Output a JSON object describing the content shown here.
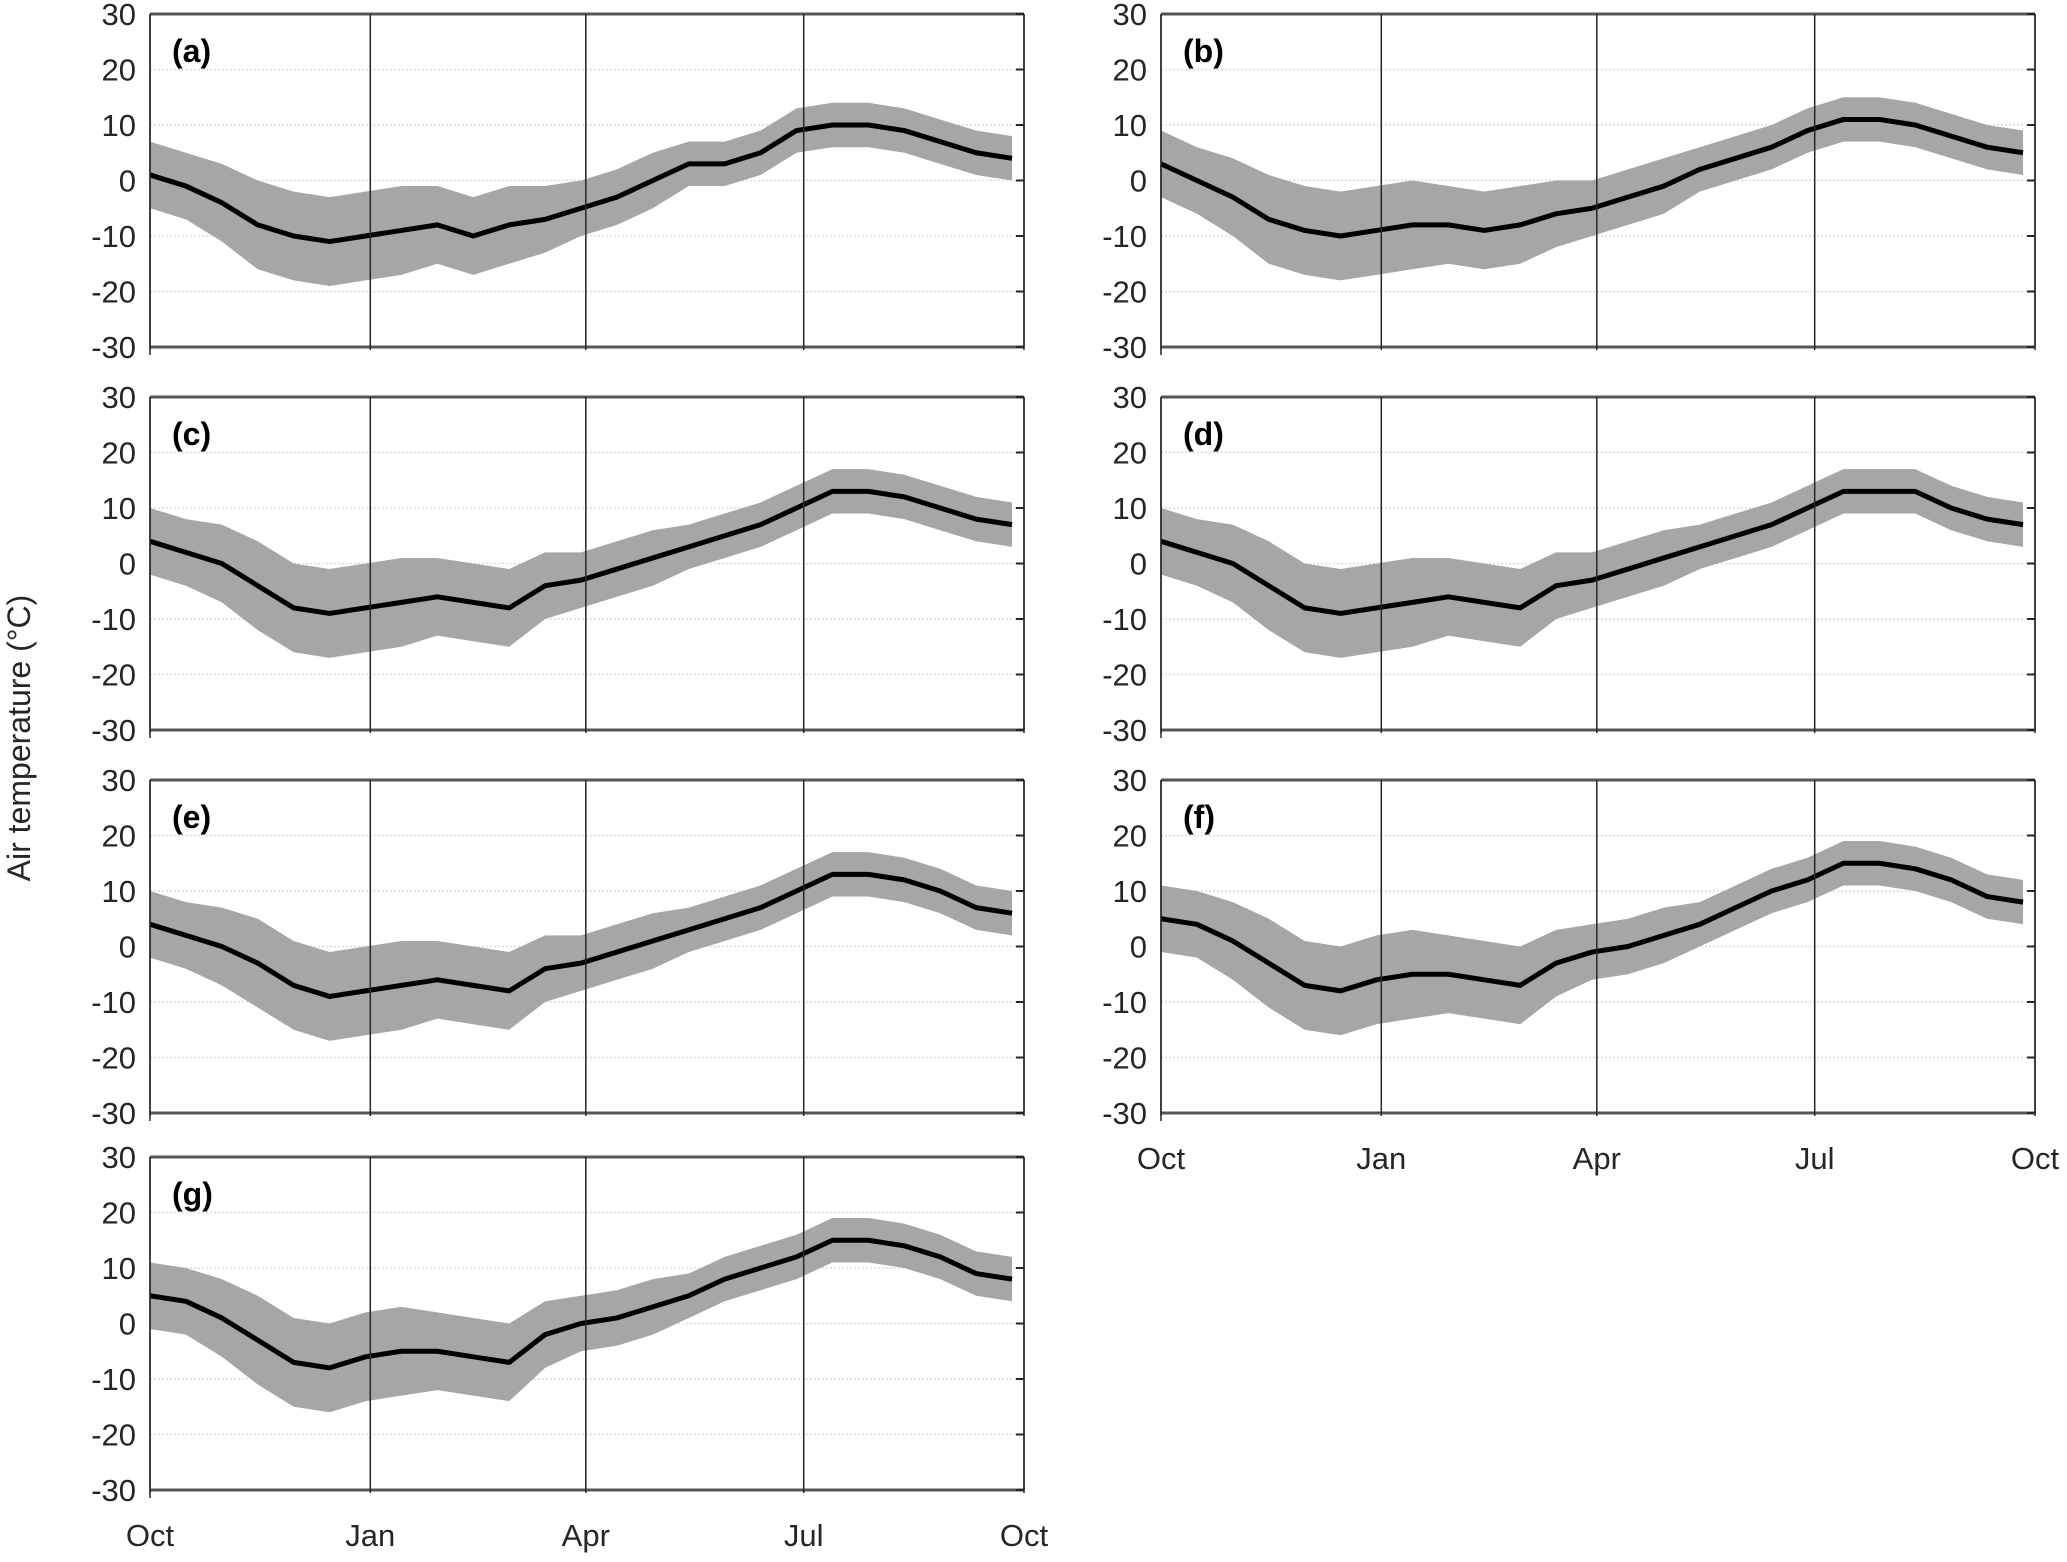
{
  "chart_data": {
    "type": "line",
    "ylabel": "Air temperature (°C)",
    "ylim": [
      -30,
      30
    ],
    "yticks": [
      "30",
      "20",
      "10",
      "0",
      "-10",
      "-20",
      "-30"
    ],
    "ytick_values": [
      30,
      20,
      10,
      0,
      -10,
      -20,
      -30
    ],
    "xlim_days_from_oct1": [
      0,
      365
    ],
    "xticks": [
      "Oct",
      "Jan",
      "Apr",
      "Jul",
      "Oct"
    ],
    "xtick_days": [
      0,
      92,
      182,
      273,
      365
    ],
    "grid": true,
    "x_days": [
      0,
      15,
      30,
      45,
      60,
      75,
      90,
      105,
      120,
      135,
      150,
      165,
      180,
      195,
      210,
      225,
      240,
      255,
      270,
      285,
      300,
      315,
      330,
      345,
      360
    ],
    "band_halfwidth": [
      6,
      6,
      7,
      8,
      8,
      8,
      8,
      8,
      7,
      7,
      7,
      6,
      5,
      5,
      5,
      4,
      4,
      4,
      4,
      4,
      4,
      4,
      4,
      4,
      4
    ],
    "band_description_colors": {
      "band": "#a6a6a6",
      "line": "#000000"
    },
    "panels": [
      {
        "label": "(a)",
        "mean": [
          1,
          -1,
          -4,
          -8,
          -10,
          -11,
          -10,
          -9,
          -8,
          -10,
          -8,
          -7,
          -5,
          -3,
          0,
          3,
          3,
          5,
          9,
          10,
          10,
          9,
          7,
          5,
          4
        ]
      },
      {
        "label": "(b)",
        "mean": [
          3,
          0,
          -3,
          -7,
          -9,
          -10,
          -9,
          -8,
          -8,
          -9,
          -8,
          -6,
          -5,
          -3,
          -1,
          2,
          4,
          6,
          9,
          11,
          11,
          10,
          8,
          6,
          5
        ]
      },
      {
        "label": "(c)",
        "mean": [
          4,
          2,
          0,
          -4,
          -8,
          -9,
          -8,
          -7,
          -6,
          -7,
          -8,
          -4,
          -3,
          -1,
          1,
          3,
          5,
          7,
          10,
          13,
          13,
          12,
          10,
          8,
          7
        ]
      },
      {
        "label": "(d)",
        "mean": [
          4,
          2,
          0,
          -4,
          -8,
          -9,
          -8,
          -7,
          -6,
          -7,
          -8,
          -4,
          -3,
          -1,
          1,
          3,
          5,
          7,
          10,
          13,
          13,
          13,
          10,
          8,
          7
        ]
      },
      {
        "label": "(e)",
        "mean": [
          4,
          2,
          0,
          -3,
          -7,
          -9,
          -8,
          -7,
          -6,
          -7,
          -8,
          -4,
          -3,
          -1,
          1,
          3,
          5,
          7,
          10,
          13,
          13,
          12,
          10,
          7,
          6
        ]
      },
      {
        "label": "(f)",
        "mean": [
          5,
          4,
          1,
          -3,
          -7,
          -8,
          -6,
          -5,
          -5,
          -6,
          -7,
          -3,
          -1,
          0,
          2,
          4,
          7,
          10,
          12,
          15,
          15,
          14,
          12,
          9,
          8
        ]
      },
      {
        "label": "(g)",
        "mean": [
          5,
          4,
          1,
          -3,
          -7,
          -8,
          -6,
          -5,
          -5,
          -6,
          -7,
          -2,
          0,
          1,
          3,
          5,
          8,
          10,
          12,
          15,
          15,
          14,
          12,
          9,
          8
        ]
      }
    ]
  }
}
